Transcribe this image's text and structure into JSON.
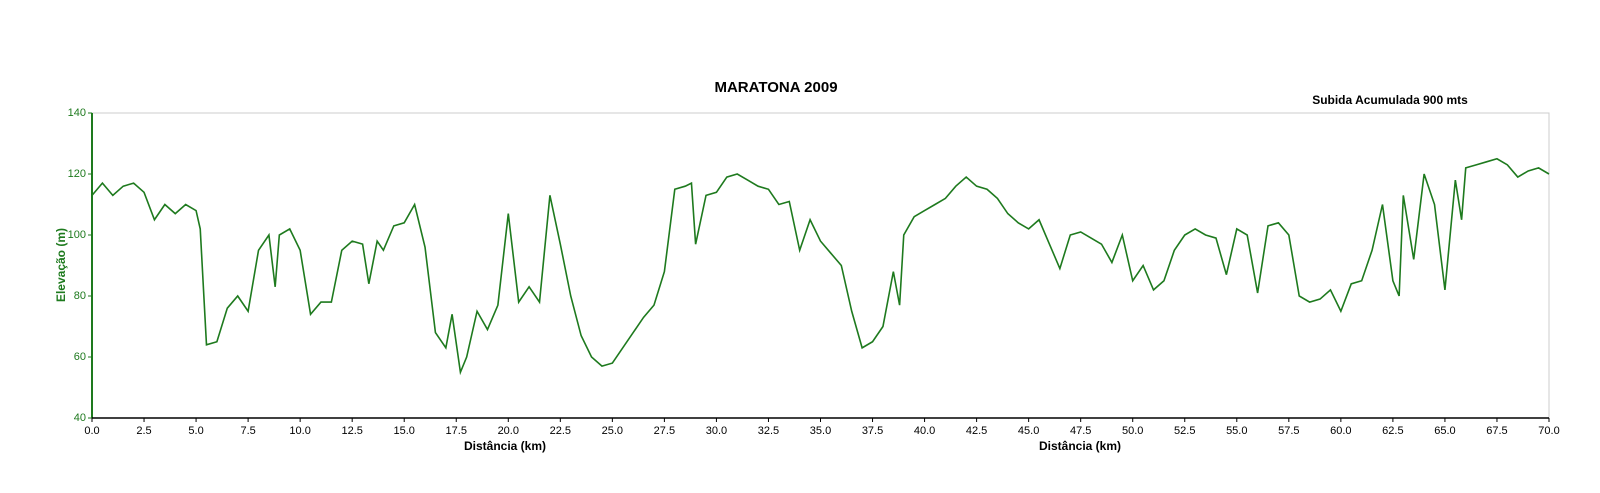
{
  "chart_data": {
    "type": "line",
    "title": "MARATONA 2009",
    "annotation": "Subida Acumulada 900 mts",
    "xlabel": "Distância (km)",
    "ylabel": "Elevação (m)",
    "x": [
      0,
      0.5,
      1,
      1.5,
      2,
      2.5,
      3,
      3.5,
      4,
      4.5,
      5,
      5.2,
      5.5,
      6,
      6.5,
      7,
      7.5,
      8,
      8.5,
      8.8,
      9,
      9.5,
      10,
      10.5,
      11,
      11.5,
      12,
      12.5,
      13,
      13.3,
      13.7,
      14,
      14.5,
      15,
      15.5,
      16,
      16.5,
      17,
      17.3,
      17.7,
      18,
      18.5,
      19,
      19.5,
      20,
      20.5,
      21,
      21.5,
      22,
      22.5,
      23,
      23.5,
      24,
      24.5,
      25,
      25.5,
      26,
      26.5,
      27,
      27.5,
      28,
      28.5,
      28.8,
      29,
      29.5,
      30,
      30.5,
      31,
      31.5,
      32,
      32.5,
      33,
      33.5,
      34,
      34.5,
      35,
      35.5,
      36,
      36.5,
      37,
      37.5,
      38,
      38.5,
      38.8,
      39,
      39.5,
      40,
      40.5,
      41,
      41.5,
      42,
      42.5,
      43,
      43.5,
      44,
      44.5,
      45,
      45.5,
      46,
      46.5,
      47,
      47.5,
      48,
      48.5,
      49,
      49.5,
      50,
      50.5,
      51,
      51.5,
      52,
      52.5,
      53,
      53.5,
      54,
      54.5,
      55,
      55.5,
      56,
      56.5,
      57,
      57.5,
      58,
      58.5,
      59,
      59.5,
      60,
      60.5,
      61,
      61.5,
      62,
      62.5,
      62.8,
      63,
      63.5,
      64,
      64.5,
      65,
      65.5,
      65.8,
      66,
      66.5,
      67,
      67.5,
      68,
      68.5,
      69,
      69.5,
      70
    ],
    "series": [
      {
        "name": "Elevação",
        "color": "#1e7a1e",
        "values": [
          113,
          117,
          113,
          116,
          117,
          114,
          105,
          110,
          107,
          110,
          108,
          102,
          64,
          65,
          76,
          80,
          75,
          95,
          100,
          83,
          100,
          102,
          95,
          74,
          78,
          78,
          95,
          98,
          97,
          84,
          98,
          95,
          103,
          104,
          110,
          96,
          68,
          63,
          74,
          55,
          60,
          75,
          69,
          77,
          107,
          78,
          83,
          78,
          113,
          97,
          80,
          67,
          60,
          57,
          58,
          63,
          68,
          73,
          77,
          88,
          115,
          116,
          117,
          97,
          113,
          114,
          119,
          120,
          118,
          116,
          115,
          110,
          111,
          95,
          105,
          98,
          94,
          90,
          75,
          63,
          65,
          70,
          88,
          77,
          100,
          106,
          108,
          110,
          112,
          116,
          119,
          116,
          115,
          112,
          107,
          104,
          102,
          105,
          97,
          89,
          100,
          101,
          99,
          97,
          91,
          100,
          85,
          90,
          82,
          85,
          95,
          100,
          102,
          100,
          99,
          87,
          102,
          100,
          81,
          103,
          104,
          100,
          80,
          78,
          79,
          82,
          75,
          84,
          85,
          95,
          110,
          85,
          80,
          113,
          92,
          120,
          110,
          82,
          118,
          105,
          122,
          123,
          124,
          125,
          123,
          119,
          121,
          122,
          120
        ]
      }
    ],
    "xlim": [
      0,
      70
    ],
    "xticks": [
      {
        "value": 0,
        "label": "0.0"
      },
      2.5,
      {
        "value": 5,
        "label": "5.0"
      },
      7.5,
      {
        "value": 10,
        "label": "10.0"
      },
      12.5,
      {
        "value": 15,
        "label": "15.0"
      },
      17.5,
      {
        "value": 20,
        "label": "20.0"
      },
      22.5,
      {
        "value": 25,
        "label": "25.0"
      },
      27.5,
      {
        "value": 30,
        "label": "30.0"
      },
      32.5,
      {
        "value": 35,
        "label": "35.0"
      },
      37.5,
      {
        "value": 40,
        "label": "40.0"
      },
      42.5,
      {
        "value": 45,
        "label": "45.0"
      },
      47.5,
      {
        "value": 50,
        "label": "50.0"
      },
      52.5,
      {
        "value": 55,
        "label": "55.0"
      },
      57.5,
      {
        "value": 60,
        "label": "60.0"
      },
      62.5,
      {
        "value": 65,
        "label": "65.0"
      },
      67.5,
      {
        "value": 70,
        "label": "70.0"
      }
    ],
    "ylim": [
      40,
      140
    ],
    "yticks": [
      40,
      60,
      80,
      100,
      120,
      140
    ],
    "grid": false
  }
}
